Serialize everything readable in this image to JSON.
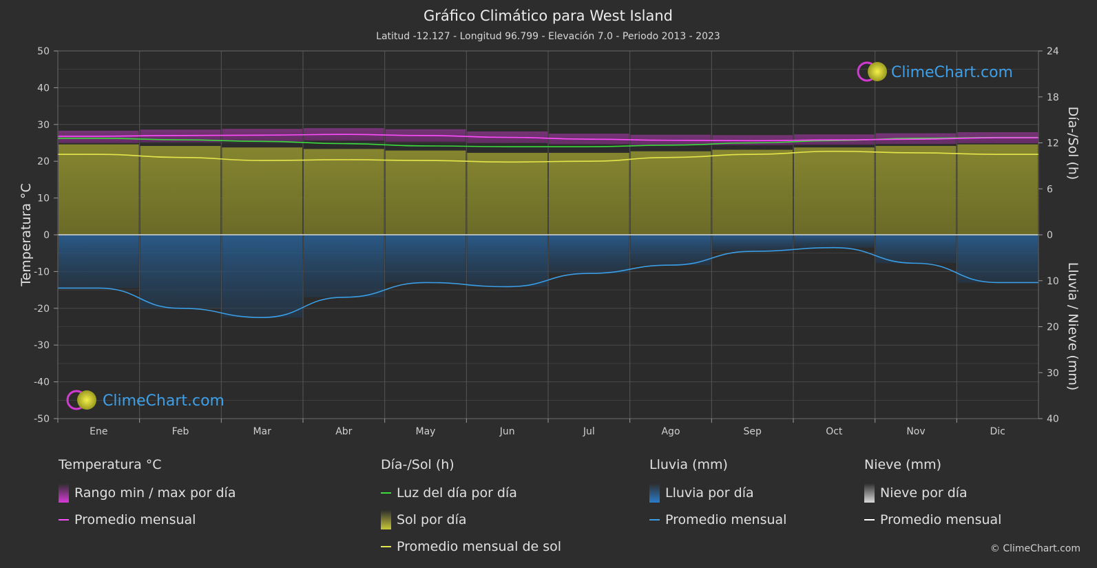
{
  "chart_data": {
    "type": "area",
    "title": "Gráfico Climático para West Island",
    "subtitle": "Latitud -12.127 - Longitud 96.799 - Elevación 7.0 - Periodo 2013 - 2023",
    "categories": [
      "Ene",
      "Feb",
      "Mar",
      "Abr",
      "May",
      "Jun",
      "Jul",
      "Ago",
      "Sep",
      "Oct",
      "Nov",
      "Dic"
    ],
    "left_axis": {
      "label": "Temperatura °C",
      "range": [
        -50,
        50
      ],
      "ticks": [
        "50",
        "40",
        "30",
        "20",
        "10",
        "0",
        "-10",
        "-20",
        "-30",
        "-40",
        "-50"
      ]
    },
    "right_axis_top": {
      "label": "Día-/Sol (h)",
      "range": [
        0,
        24
      ],
      "ticks": [
        "24",
        "18",
        "12",
        "6",
        "0"
      ]
    },
    "right_axis_bottom": {
      "label": "Lluvia / Nieve (mm)",
      "range": [
        0,
        40
      ],
      "ticks": [
        "10",
        "20",
        "30",
        "40"
      ]
    },
    "grid": true,
    "series": [
      {
        "name": "Promedio mensual",
        "group": "Temperatura °C",
        "unit": "°C",
        "color": "#ff4dff",
        "values": [
          26.8,
          27.0,
          27.1,
          27.3,
          27.0,
          26.5,
          26.0,
          25.7,
          25.6,
          25.8,
          26.0,
          26.4
        ]
      },
      {
        "name": "Rango min / max por día",
        "group": "Temperatura °C",
        "unit": "°C",
        "color": "#b82eb8",
        "min": [
          25.0,
          25.2,
          25.4,
          25.6,
          25.3,
          25.0,
          24.6,
          24.4,
          24.4,
          24.5,
          24.7,
          24.9
        ],
        "max": [
          28.3,
          28.6,
          28.8,
          29.0,
          28.7,
          28.1,
          27.5,
          27.2,
          27.1,
          27.3,
          27.6,
          27.9
        ]
      },
      {
        "name": "Luz del día por día",
        "group": "Día-/Sol (h)",
        "unit": "h",
        "color": "#3ddc3d",
        "values": [
          12.6,
          12.4,
          12.2,
          11.9,
          11.6,
          11.5,
          11.5,
          11.7,
          12.0,
          12.3,
          12.6,
          12.7
        ]
      },
      {
        "name": "Sol por día",
        "group": "Día-/Sol (h)",
        "unit": "h",
        "color": "#8f8f3a",
        "values": [
          11.8,
          11.6,
          11.4,
          11.2,
          11.0,
          10.7,
          10.7,
          10.9,
          11.1,
          11.4,
          11.6,
          11.8
        ]
      },
      {
        "name": "Promedio mensual de sol",
        "group": "Día-/Sol (h)",
        "unit": "h",
        "color": "#e6e64c",
        "values": [
          10.5,
          10.1,
          9.7,
          9.8,
          9.7,
          9.5,
          9.6,
          10.1,
          10.5,
          10.9,
          10.7,
          10.5
        ]
      },
      {
        "name": "Lluvia por día",
        "group": "Lluvia (mm)",
        "unit": "mm",
        "color": "#2a6fb0",
        "values": [
          11.6,
          16.0,
          18.0,
          13.6,
          10.4,
          11.3,
          8.4,
          6.6,
          3.6,
          2.8,
          6.2,
          10.4
        ]
      },
      {
        "name": "Promedio mensual",
        "group": "Lluvia (mm)",
        "unit": "mm",
        "color": "#3a9ee6",
        "values": [
          11.6,
          16.0,
          18.0,
          13.6,
          10.4,
          11.3,
          8.4,
          6.6,
          3.6,
          2.8,
          6.2,
          10.4
        ]
      },
      {
        "name": "Nieve por día",
        "group": "Nieve (mm)",
        "unit": "mm",
        "color": "#dddddd",
        "values": [
          0,
          0,
          0,
          0,
          0,
          0,
          0,
          0,
          0,
          0,
          0,
          0
        ]
      },
      {
        "name": "Promedio mensual",
        "group": "Nieve (mm)",
        "unit": "mm",
        "color": "#ffffff",
        "values": [
          0,
          0,
          0,
          0,
          0,
          0,
          0,
          0,
          0,
          0,
          0,
          0
        ]
      }
    ]
  },
  "watermark": {
    "text": "ClimeChart.com",
    "color": "#3ea0e8"
  },
  "legend": [
    {
      "title": "Temperatura °C",
      "items": [
        {
          "label": "Rango min / max por día",
          "kind": "box",
          "color": "#d63ad6"
        },
        {
          "label": "Promedio mensual",
          "kind": "line",
          "color": "#ff4dff"
        }
      ]
    },
    {
      "title": "Día-/Sol (h)",
      "items": [
        {
          "label": "Luz del día por día",
          "kind": "line",
          "color": "#3ddc3d"
        },
        {
          "label": "Sol por día",
          "kind": "box",
          "color": "#c8c83a"
        },
        {
          "label": "Promedio mensual de sol",
          "kind": "line",
          "color": "#e6e64c"
        }
      ]
    },
    {
      "title": "Lluvia (mm)",
      "items": [
        {
          "label": "Lluvia por día",
          "kind": "box",
          "color": "#2a7cc9"
        },
        {
          "label": "Promedio mensual",
          "kind": "line",
          "color": "#3a9ee6"
        }
      ]
    },
    {
      "title": "Nieve (mm)",
      "items": [
        {
          "label": "Nieve por día",
          "kind": "box",
          "color": "#d9d9d9"
        },
        {
          "label": "Promedio mensual",
          "kind": "line",
          "color": "#ffffff"
        }
      ]
    }
  ],
  "copyright": "© ClimeChart.com"
}
